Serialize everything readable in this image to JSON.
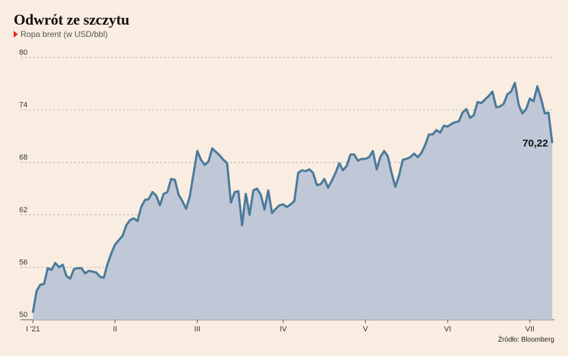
{
  "title": "Odwrót ze szczytu",
  "subtitle": "Ropa brent (w USD/bbl)",
  "source": "Źródło: Bloomberg",
  "colors": {
    "line": "#4a7a9a",
    "area": "#c0c7d6",
    "marker": "#e2231a",
    "background": "#f9ece0",
    "grid": "#a8a8a8"
  },
  "chart_data": {
    "type": "area",
    "title": "Odwrót ze szczytu",
    "ylabel": "Ropa brent (w USD/bbl)",
    "ylim": [
      50,
      80
    ],
    "yticks": [
      "80",
      "74",
      "68",
      "62",
      "56",
      "50"
    ],
    "ytick_values": [
      80,
      74,
      68,
      62,
      56,
      50
    ],
    "xticks": [
      "I '21",
      "II",
      "III",
      "IV",
      "V",
      "VI",
      "VII"
    ],
    "xtick_positions": [
      0,
      22,
      44,
      67,
      89,
      111,
      133
    ],
    "grid": true,
    "last_value_label": "70,22",
    "values": [
      50.8,
      53.3,
      54.0,
      54.1,
      55.9,
      55.7,
      56.5,
      56.0,
      56.3,
      55.0,
      54.7,
      55.8,
      55.9,
      55.9,
      55.3,
      55.6,
      55.5,
      55.4,
      54.9,
      54.8,
      56.4,
      57.6,
      58.6,
      59.1,
      59.6,
      60.8,
      61.4,
      61.6,
      61.3,
      62.9,
      63.7,
      63.8,
      64.6,
      64.2,
      63.1,
      64.4,
      64.6,
      66.1,
      66.0,
      64.3,
      63.6,
      62.7,
      64.1,
      66.7,
      69.3,
      68.3,
      67.7,
      68.1,
      69.6,
      69.2,
      68.8,
      68.3,
      67.9,
      63.4,
      64.6,
      64.7,
      60.8,
      64.4,
      62.0,
      64.8,
      65.0,
      64.3,
      62.6,
      64.8,
      62.2,
      62.7,
      63.1,
      63.2,
      62.9,
      63.2,
      63.6,
      66.8,
      67.1,
      67.0,
      67.2,
      66.8,
      65.4,
      65.5,
      66.1,
      65.1,
      65.9,
      66.8,
      67.9,
      67.1,
      67.6,
      68.9,
      68.9,
      68.2,
      68.4,
      68.4,
      68.6,
      69.3,
      67.2,
      68.6,
      69.3,
      68.7,
      66.8,
      65.2,
      66.5,
      68.3,
      68.4,
      68.6,
      69.0,
      68.6,
      69.1,
      70.0,
      71.2,
      71.2,
      71.7,
      71.4,
      72.2,
      72.1,
      72.4,
      72.6,
      72.7,
      73.7,
      74.1,
      73.1,
      73.4,
      74.9,
      74.8,
      75.2,
      75.6,
      76.1,
      74.3,
      74.4,
      74.7,
      75.8,
      76.1,
      77.1,
      74.6,
      73.6,
      74.1,
      75.3,
      75.0,
      76.7,
      75.3,
      73.6,
      73.7,
      70.22
    ]
  }
}
